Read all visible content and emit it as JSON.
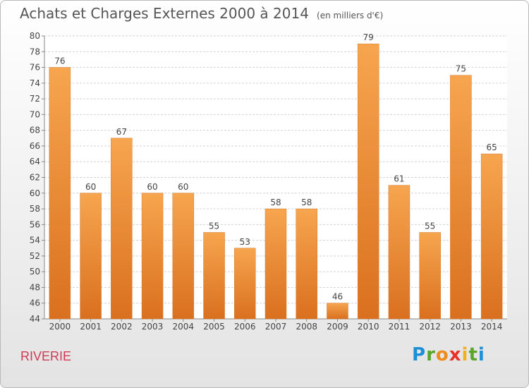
{
  "header": {
    "title": "Achats et Charges Externes 2000 à 2014",
    "unit": "(en milliers d'€)"
  },
  "commune": "RIVERIE",
  "brand": {
    "letters": [
      "P",
      "r",
      "o",
      "x",
      "i",
      "t",
      "i"
    ],
    "colors": [
      "#1e8fd6",
      "#5aa62a",
      "#f08a1c",
      "#e6332a",
      "#f2b01e",
      "#5aa62a",
      "#1e8fd6"
    ]
  },
  "chart_data": {
    "type": "bar",
    "title": "Achats et Charges Externes 2000 à 2014",
    "categories": [
      "2000",
      "2001",
      "2002",
      "2003",
      "2004",
      "2005",
      "2006",
      "2007",
      "2008",
      "2009",
      "2010",
      "2011",
      "2012",
      "2013",
      "2014"
    ],
    "values": [
      76,
      60,
      67,
      60,
      60,
      55,
      53,
      58,
      58,
      46,
      79,
      61,
      55,
      75,
      65
    ],
    "ylim": [
      44,
      80
    ],
    "ytick_step": 2,
    "grid": true,
    "bar_color_light": "#f7a54f",
    "bar_color_dark": "#d9701f"
  }
}
